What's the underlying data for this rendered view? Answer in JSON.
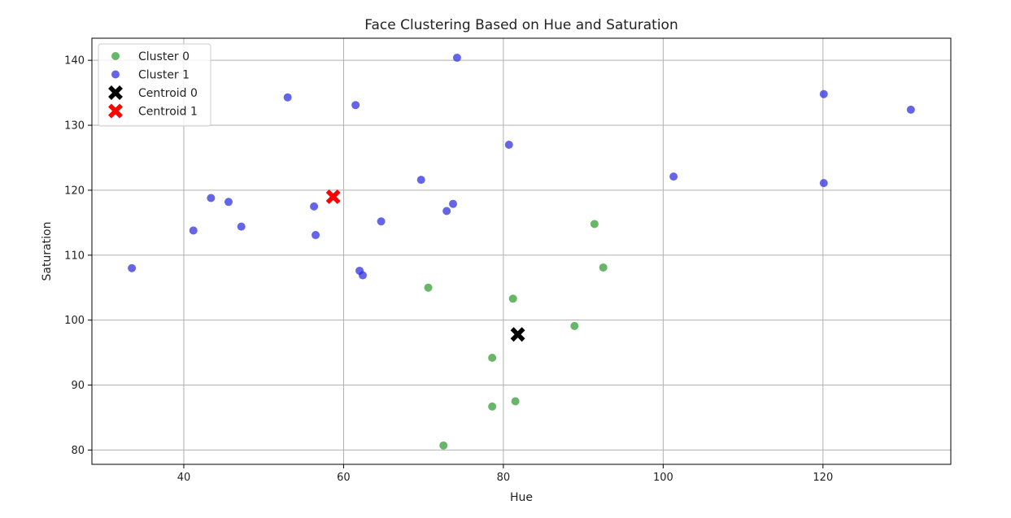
{
  "chart_data": {
    "type": "scatter",
    "title": "Face Clustering Based on Hue and Saturation",
    "xlabel": "Hue",
    "ylabel": "Saturation",
    "xlim": [
      28.5,
      136
    ],
    "ylim": [
      77.8,
      143.4
    ],
    "xticks": [
      40,
      60,
      80,
      100,
      120
    ],
    "yticks": [
      80,
      90,
      100,
      110,
      120,
      130,
      140
    ],
    "grid": true,
    "legend_position": "top-left",
    "series": [
      {
        "name": "Cluster 0",
        "color": "#2e9a2e",
        "marker": "circle",
        "points": [
          [
            70.6,
            105.0
          ],
          [
            81.2,
            103.3
          ],
          [
            91.4,
            114.8
          ],
          [
            92.5,
            108.1
          ],
          [
            88.9,
            99.1
          ],
          [
            78.6,
            94.2
          ],
          [
            78.6,
            86.7
          ],
          [
            81.5,
            87.5
          ],
          [
            72.5,
            80.7
          ]
        ]
      },
      {
        "name": "Cluster 1",
        "color": "#2a2adf",
        "marker": "circle",
        "points": [
          [
            33.5,
            108.0
          ],
          [
            41.2,
            113.8
          ],
          [
            43.4,
            118.8
          ],
          [
            45.6,
            118.2
          ],
          [
            47.2,
            114.4
          ],
          [
            53.0,
            134.3
          ],
          [
            56.3,
            117.5
          ],
          [
            56.5,
            113.1
          ],
          [
            61.5,
            133.1
          ],
          [
            62.0,
            107.6
          ],
          [
            62.4,
            106.9
          ],
          [
            64.7,
            115.2
          ],
          [
            69.7,
            121.6
          ],
          [
            72.9,
            116.8
          ],
          [
            73.7,
            117.9
          ],
          [
            74.2,
            140.4
          ],
          [
            80.7,
            127.0
          ],
          [
            101.3,
            122.1
          ],
          [
            120.1,
            134.8
          ],
          [
            120.1,
            121.1
          ],
          [
            131.0,
            132.4
          ]
        ]
      },
      {
        "name": "Centroid 0",
        "color": "#000000",
        "marker": "x",
        "points": [
          [
            81.8,
            97.8
          ]
        ]
      },
      {
        "name": "Centroid 1",
        "color": "#ff0000",
        "marker": "x",
        "points": [
          [
            58.7,
            119.0
          ]
        ]
      }
    ]
  }
}
